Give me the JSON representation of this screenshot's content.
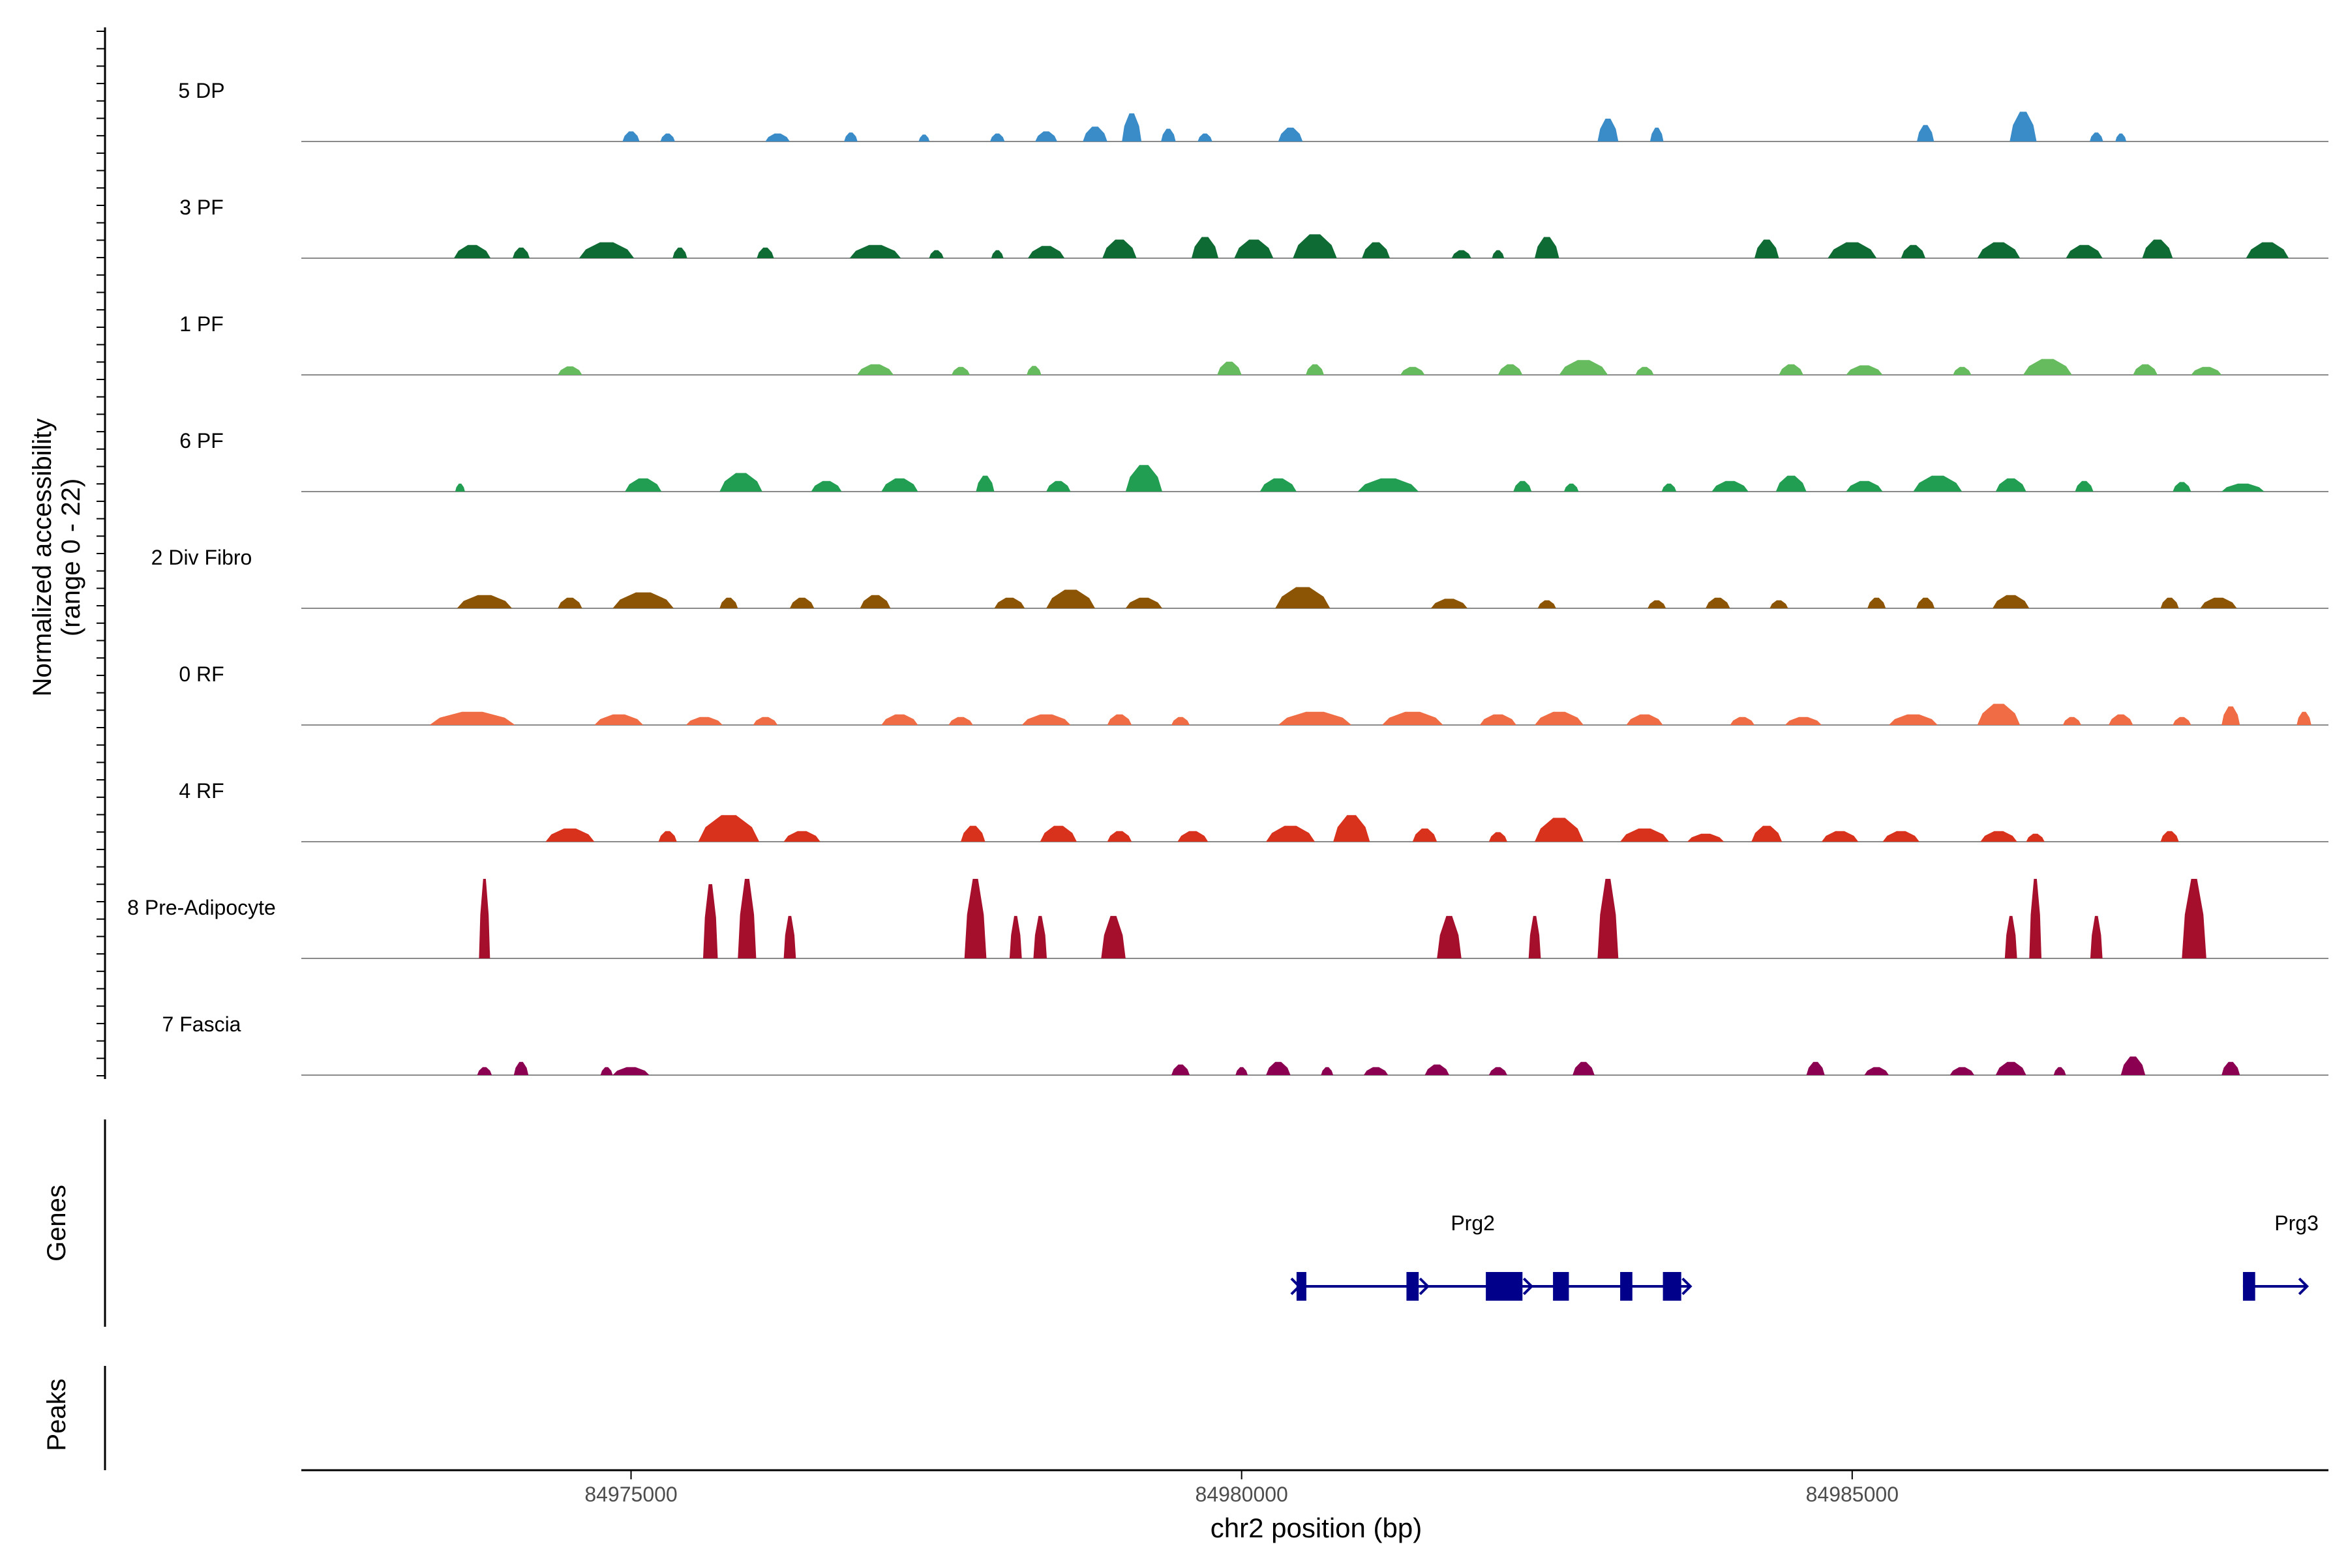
{
  "chart_data": {
    "type": "area",
    "ylabel_line1": "Normalized accessibility",
    "ylabel_line2": "(range 0 - 22)",
    "xlabel": "chr2 position (bp)",
    "xlim": [
      84972300,
      84988900
    ],
    "ylim": [
      0,
      22
    ],
    "x_ticks": [
      {
        "value": 84975000,
        "label": "84975000"
      },
      {
        "value": 84980000,
        "label": "84980000"
      },
      {
        "value": 84985000,
        "label": "84985000"
      }
    ],
    "genes_label": "Genes",
    "peaks_label": "Peaks",
    "tracks": [
      {
        "name": "5 DP",
        "color": "#3a8cc8",
        "peaks": [
          [
            84975000,
            1.9,
            140
          ],
          [
            84975300,
            1.5,
            120
          ],
          [
            84976200,
            1.5,
            200
          ],
          [
            84976800,
            1.7,
            110
          ],
          [
            84977400,
            1.3,
            90
          ],
          [
            84978000,
            1.5,
            120
          ],
          [
            84978400,
            1.9,
            180
          ],
          [
            84978800,
            2.8,
            200
          ],
          [
            84979100,
            5.3,
            160
          ],
          [
            84979400,
            2.4,
            120
          ],
          [
            84979700,
            1.5,
            120
          ],
          [
            84980400,
            2.6,
            200
          ],
          [
            84983000,
            4.3,
            170
          ],
          [
            84983400,
            2.6,
            110
          ],
          [
            84985600,
            3.1,
            140
          ],
          [
            84986400,
            5.6,
            220
          ],
          [
            84987000,
            1.7,
            110
          ],
          [
            84987200,
            1.5,
            90
          ]
        ]
      },
      {
        "name": "3 PF",
        "color": "#0f6b34",
        "peaks": [
          [
            84973700,
            2.5,
            300
          ],
          [
            84974100,
            2.0,
            140
          ],
          [
            84974800,
            3.0,
            450
          ],
          [
            84975400,
            2.0,
            120
          ],
          [
            84976100,
            2.0,
            140
          ],
          [
            84977000,
            2.5,
            420
          ],
          [
            84977500,
            1.5,
            120
          ],
          [
            84978000,
            1.5,
            100
          ],
          [
            84978400,
            2.3,
            300
          ],
          [
            84979000,
            3.5,
            280
          ],
          [
            84979700,
            4.0,
            220
          ],
          [
            84980100,
            3.5,
            320
          ],
          [
            84980600,
            4.5,
            360
          ],
          [
            84981100,
            3.0,
            230
          ],
          [
            84981800,
            1.5,
            160
          ],
          [
            84982100,
            1.5,
            100
          ],
          [
            84982500,
            4.0,
            200
          ],
          [
            84984300,
            3.5,
            200
          ],
          [
            84985000,
            3.0,
            400
          ],
          [
            84985500,
            2.5,
            200
          ],
          [
            84986200,
            3.0,
            350
          ],
          [
            84986900,
            2.5,
            300
          ],
          [
            84987500,
            3.5,
            250
          ],
          [
            84988400,
            3.0,
            350
          ]
        ]
      },
      {
        "name": "1 PF",
        "color": "#66bb5e",
        "peaks": [
          [
            84974500,
            1.6,
            200
          ],
          [
            84977000,
            2.0,
            300
          ],
          [
            84977700,
            1.5,
            150
          ],
          [
            84978300,
            1.7,
            120
          ],
          [
            84979900,
            2.5,
            200
          ],
          [
            84980600,
            2.0,
            150
          ],
          [
            84981400,
            1.5,
            200
          ],
          [
            84982200,
            2.0,
            200
          ],
          [
            84982800,
            2.8,
            400
          ],
          [
            84983300,
            1.5,
            150
          ],
          [
            84984500,
            2.0,
            200
          ],
          [
            84985100,
            1.8,
            300
          ],
          [
            84985900,
            1.5,
            150
          ],
          [
            84986600,
            3.0,
            400
          ],
          [
            84987400,
            2.0,
            200
          ],
          [
            84987900,
            1.5,
            250
          ]
        ]
      },
      {
        "name": "6 PF",
        "color": "#229e52",
        "peaks": [
          [
            84973600,
            1.5,
            80
          ],
          [
            84975100,
            2.5,
            300
          ],
          [
            84975900,
            3.5,
            350
          ],
          [
            84976600,
            2.0,
            250
          ],
          [
            84977200,
            2.5,
            300
          ],
          [
            84977900,
            3.0,
            150
          ],
          [
            84978500,
            2.0,
            200
          ],
          [
            84979200,
            5.0,
            300
          ],
          [
            84980300,
            2.5,
            300
          ],
          [
            84981200,
            2.5,
            500
          ],
          [
            84982300,
            2.0,
            150
          ],
          [
            84982700,
            1.5,
            120
          ],
          [
            84983500,
            1.5,
            120
          ],
          [
            84984000,
            2.0,
            300
          ],
          [
            84984500,
            3.0,
            250
          ],
          [
            84985100,
            2.0,
            300
          ],
          [
            84985700,
            3.0,
            400
          ],
          [
            84986300,
            2.5,
            250
          ],
          [
            84986900,
            2.0,
            150
          ],
          [
            84987700,
            1.8,
            150
          ],
          [
            84988200,
            1.5,
            350
          ]
        ]
      },
      {
        "name": "2 Div Fibro",
        "color": "#8c5405",
        "peaks": [
          [
            84973800,
            2.5,
            450
          ],
          [
            84974500,
            2.0,
            200
          ],
          [
            84975100,
            3.0,
            500
          ],
          [
            84975800,
            2.0,
            150
          ],
          [
            84976400,
            2.0,
            200
          ],
          [
            84977000,
            2.5,
            250
          ],
          [
            84978100,
            2.0,
            250
          ],
          [
            84978600,
            3.5,
            400
          ],
          [
            84979200,
            2.0,
            300
          ],
          [
            84980500,
            4.0,
            450
          ],
          [
            84981700,
            1.8,
            300
          ],
          [
            84982500,
            1.5,
            150
          ],
          [
            84983400,
            1.5,
            150
          ],
          [
            84983900,
            2.0,
            200
          ],
          [
            84984400,
            1.5,
            150
          ],
          [
            84985200,
            2.0,
            150
          ],
          [
            84985600,
            2.0,
            150
          ],
          [
            84986300,
            2.5,
            300
          ],
          [
            84987600,
            2.0,
            150
          ],
          [
            84988000,
            2.0,
            300
          ]
        ]
      },
      {
        "name": "0 RF",
        "color": "#ef6c44",
        "peaks": [
          [
            84973700,
            2.5,
            700
          ],
          [
            84974900,
            2.0,
            400
          ],
          [
            84975600,
            1.5,
            300
          ],
          [
            84976100,
            1.5,
            200
          ],
          [
            84977200,
            2.0,
            300
          ],
          [
            84977700,
            1.5,
            200
          ],
          [
            84978400,
            2.0,
            400
          ],
          [
            84979000,
            2.0,
            200
          ],
          [
            84979500,
            1.5,
            150
          ],
          [
            84980600,
            2.5,
            600
          ],
          [
            84981400,
            2.5,
            500
          ],
          [
            84982100,
            2.0,
            300
          ],
          [
            84982600,
            2.5,
            400
          ],
          [
            84983300,
            2.0,
            300
          ],
          [
            84984100,
            1.5,
            200
          ],
          [
            84984600,
            1.5,
            300
          ],
          [
            84985500,
            2.0,
            400
          ],
          [
            84986200,
            4.0,
            350
          ],
          [
            84986800,
            1.5,
            150
          ],
          [
            84987200,
            2.0,
            200
          ],
          [
            84987700,
            1.5,
            150
          ],
          [
            84988100,
            3.5,
            150
          ],
          [
            84988700,
            2.5,
            120
          ]
        ]
      },
      {
        "name": "4 RF",
        "color": "#d8311c",
        "peaks": [
          [
            84974500,
            2.5,
            400
          ],
          [
            84975300,
            2.0,
            150
          ],
          [
            84975800,
            5.0,
            500
          ],
          [
            84976400,
            2.0,
            300
          ],
          [
            84977800,
            3.0,
            200
          ],
          [
            84978500,
            3.0,
            300
          ],
          [
            84979000,
            2.0,
            200
          ],
          [
            84979600,
            2.0,
            250
          ],
          [
            84980400,
            3.0,
            400
          ],
          [
            84980900,
            5.0,
            300
          ],
          [
            84981500,
            2.5,
            200
          ],
          [
            84982100,
            1.8,
            150
          ],
          [
            84982600,
            4.5,
            400
          ],
          [
            84983300,
            2.5,
            400
          ],
          [
            84983800,
            1.5,
            300
          ],
          [
            84984300,
            3.0,
            250
          ],
          [
            84984900,
            2.0,
            300
          ],
          [
            84985400,
            2.0,
            300
          ],
          [
            84986200,
            2.0,
            300
          ],
          [
            84986500,
            1.5,
            150
          ],
          [
            84987600,
            2.0,
            150
          ]
        ]
      },
      {
        "name": "8 Pre-Adipocyte",
        "color": "#a50f2c",
        "peaks": [
          [
            84973800,
            15,
            90
          ],
          [
            84975650,
            14,
            120
          ],
          [
            84975950,
            15,
            150
          ],
          [
            84976300,
            8,
            100
          ],
          [
            84977820,
            15,
            180
          ],
          [
            84978150,
            8,
            100
          ],
          [
            84978350,
            8,
            110
          ],
          [
            84978950,
            8,
            200
          ],
          [
            84981700,
            8,
            200
          ],
          [
            84982400,
            8,
            100
          ],
          [
            84983000,
            15,
            170
          ],
          [
            84986300,
            8,
            100
          ],
          [
            84986500,
            15,
            100
          ],
          [
            84987000,
            8,
            100
          ],
          [
            84987800,
            15,
            200
          ]
        ]
      },
      {
        "name": "7 Fascia",
        "color": "#8b0051",
        "peaks": [
          [
            84973800,
            1.5,
            120
          ],
          [
            84974100,
            2.5,
            120
          ],
          [
            84974800,
            1.5,
            100
          ],
          [
            84975000,
            1.5,
            300
          ],
          [
            84979500,
            2.0,
            150
          ],
          [
            84980000,
            1.5,
            100
          ],
          [
            84980300,
            2.5,
            200
          ],
          [
            84980700,
            1.5,
            100
          ],
          [
            84981100,
            1.5,
            200
          ],
          [
            84981600,
            2.0,
            200
          ],
          [
            84982100,
            1.5,
            150
          ],
          [
            84982800,
            2.5,
            180
          ],
          [
            84984700,
            2.5,
            150
          ],
          [
            84985200,
            1.5,
            200
          ],
          [
            84985900,
            1.5,
            200
          ],
          [
            84986300,
            2.5,
            250
          ],
          [
            84986700,
            1.5,
            100
          ],
          [
            84987300,
            3.5,
            200
          ],
          [
            84988100,
            2.5,
            150
          ]
        ]
      }
    ],
    "genes": [
      {
        "name": "Prg2",
        "color": "#00008b",
        "start": 84980450,
        "end": 84983600,
        "strand": "+",
        "exons": [
          [
            84980450,
            84980530
          ],
          [
            84981350,
            84981450
          ],
          [
            84982000,
            84982300
          ],
          [
            84982550,
            84982680
          ],
          [
            84983100,
            84983200
          ],
          [
            84983450,
            84983600
          ]
        ]
      },
      {
        "name": "Prg3",
        "color": "#00008b",
        "start": 84988200,
        "end": 84988650,
        "strand": "+",
        "exons": [
          [
            84988200,
            84988300
          ]
        ]
      }
    ]
  }
}
